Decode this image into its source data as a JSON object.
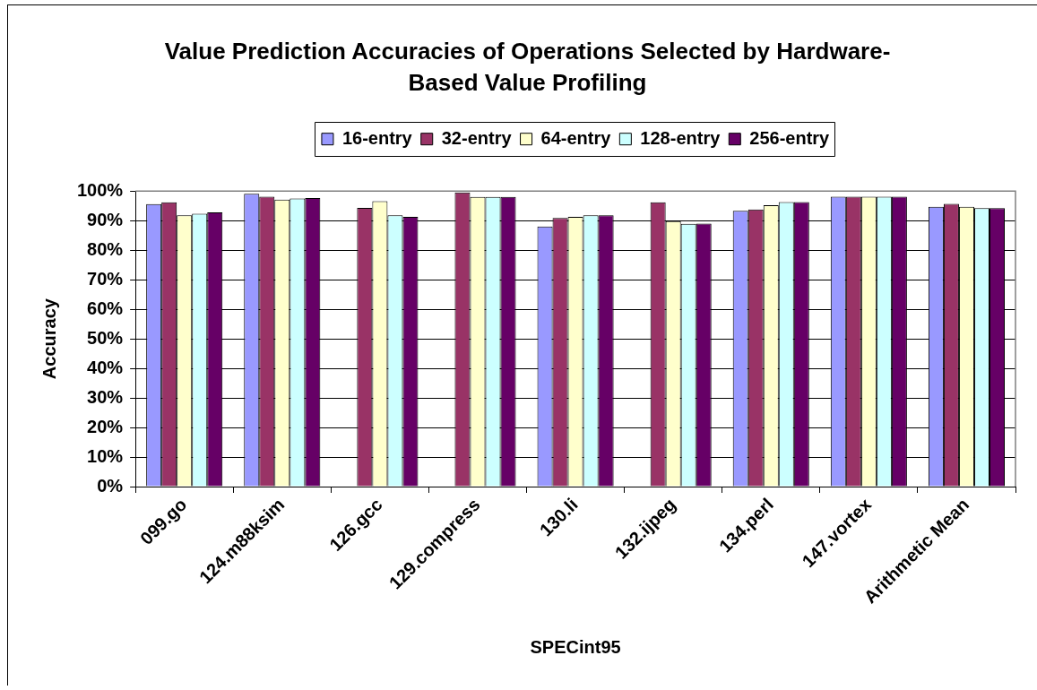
{
  "chart_data": {
    "type": "bar",
    "title": "Value Prediction Accuracies of Operations Selected by Hardware-Based Value Profiling",
    "xlabel": "SPECint95",
    "ylabel": "Accuracy",
    "categories": [
      "099.go",
      "124.m88ksim",
      "126.gcc",
      "129.compress",
      "130.li",
      "132.ijpeg",
      "134.perl",
      "147.vortex",
      "Arithmetic Mean"
    ],
    "series": [
      {
        "name": "16-entry",
        "color": "#9999ff",
        "values": [
          95.6,
          99.1,
          null,
          null,
          88.0,
          null,
          93.3,
          98.1,
          94.7
        ]
      },
      {
        "name": "32-entry",
        "color": "#993366",
        "values": [
          96.2,
          98.1,
          94.3,
          99.5,
          90.9,
          96.2,
          93.8,
          98.1,
          95.7
        ]
      },
      {
        "name": "64-entry",
        "color": "#ffffcc",
        "values": [
          91.8,
          97.1,
          96.6,
          98.0,
          91.3,
          89.8,
          95.2,
          98.1,
          94.7
        ]
      },
      {
        "name": "128-entry",
        "color": "#ccffff",
        "values": [
          92.3,
          97.5,
          91.8,
          98.0,
          91.8,
          88.9,
          96.3,
          98.1,
          94.2
        ]
      },
      {
        "name": "256-entry",
        "color": "#660066",
        "values": [
          92.8,
          97.6,
          91.3,
          98.0,
          91.8,
          89.0,
          96.3,
          98.1,
          94.2
        ]
      }
    ],
    "ylim": [
      0,
      100
    ],
    "yticks": [
      {
        "value": 0,
        "label": "0%"
      },
      {
        "value": 10,
        "label": "10%"
      },
      {
        "value": 20,
        "label": "20%"
      },
      {
        "value": 30,
        "label": "30%"
      },
      {
        "value": 40,
        "label": "40%"
      },
      {
        "value": 50,
        "label": "50%"
      },
      {
        "value": 60,
        "label": "60%"
      },
      {
        "value": 70,
        "label": "70%"
      },
      {
        "value": 80,
        "label": "80%"
      },
      {
        "value": 90,
        "label": "90%"
      },
      {
        "value": 100,
        "label": "100%"
      }
    ],
    "grid": "y",
    "legend": "top"
  }
}
